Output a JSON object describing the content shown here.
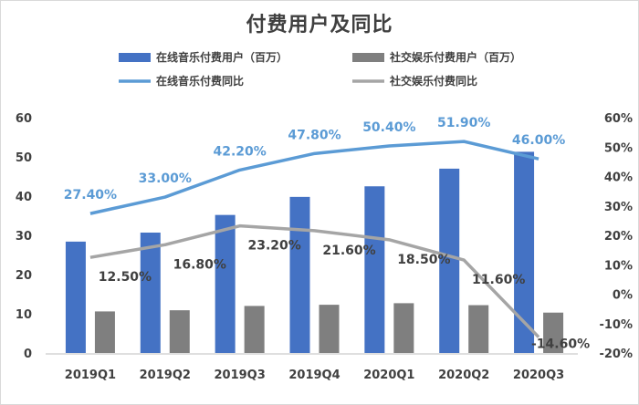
{
  "chart_data": {
    "type": "bar",
    "title": "付费用户及同比",
    "categories": [
      "2019Q1",
      "2019Q2",
      "2019Q3",
      "2019Q4",
      "2020Q1",
      "2020Q2",
      "2020Q3"
    ],
    "series": [
      {
        "name": "在线音乐付费用户（百万）",
        "kind": "bar",
        "axis": "left",
        "color": "#4472c4",
        "values": [
          28.4,
          30.7,
          35.2,
          39.8,
          42.5,
          47.0,
          51.3
        ]
      },
      {
        "name": "社交娱乐付费用户（百万）",
        "kind": "bar",
        "axis": "left",
        "color": "#7f7f7f",
        "values": [
          10.6,
          10.9,
          12.0,
          12.3,
          12.7,
          12.2,
          10.3
        ]
      },
      {
        "name": "在线音乐付费同比",
        "kind": "line",
        "axis": "right",
        "color": "#5b9bd5",
        "values": [
          27.4,
          33.0,
          42.2,
          47.8,
          50.4,
          51.9,
          46.0
        ],
        "labels": [
          "27.40%",
          "33.00%",
          "42.20%",
          "47.80%",
          "50.40%",
          "51.90%",
          "46.00%"
        ]
      },
      {
        "name": "社交娱乐付费同比",
        "kind": "line",
        "axis": "right",
        "color": "#a5a5a5",
        "values": [
          12.5,
          16.8,
          23.2,
          21.6,
          18.5,
          11.6,
          -14.6
        ],
        "labels": [
          "12.50%",
          "16.80%",
          "23.20%",
          "21.60%",
          "18.50%",
          "11.60%",
          "-14.60%"
        ]
      }
    ],
    "left_axis": {
      "range": [
        0,
        60
      ],
      "ticks": [
        "0",
        "10",
        "20",
        "30",
        "40",
        "50",
        "60"
      ]
    },
    "right_axis": {
      "range": [
        -20,
        60
      ],
      "ticks": [
        "-20%",
        "-10%",
        "0%",
        "10%",
        "20%",
        "30%",
        "40%",
        "50%",
        "60%"
      ]
    },
    "legend_position": "top",
    "grid": false
  }
}
